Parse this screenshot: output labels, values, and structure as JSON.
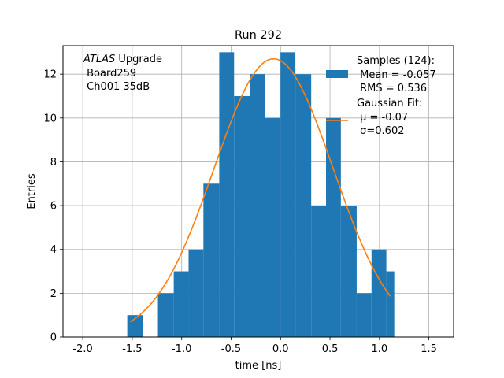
{
  "chart_data": {
    "type": "bar",
    "title": "Run 292",
    "xlabel": "time [ns]",
    "ylabel": "Entries",
    "xlim": [
      -2.2,
      1.75
    ],
    "ylim": [
      0,
      13.3
    ],
    "xticks": [
      -2.0,
      -1.5,
      -1.0,
      -0.5,
      0.0,
      0.5,
      1.0,
      1.5
    ],
    "yticks": [
      0,
      2,
      4,
      6,
      8,
      10,
      12
    ],
    "grid": true,
    "bin_edges": [
      -1.55,
      -1.39,
      -1.24,
      -1.08,
      -0.93,
      -0.78,
      -0.62,
      -0.47,
      -0.31,
      -0.16,
      0.0,
      0.15,
      0.31,
      0.46,
      0.61,
      0.77,
      0.92,
      1.07,
      1.15
    ],
    "series": [
      {
        "name": "Samples (124):",
        "kind": "hist",
        "color": "#1f77b4",
        "values": [
          1,
          0,
          2,
          3,
          4,
          7,
          13,
          11,
          12,
          10,
          13,
          12,
          6,
          10,
          6,
          2,
          4,
          3
        ]
      },
      {
        "name": "Gaussian Fit:",
        "kind": "line",
        "color": "#ff7f0e",
        "mu": -0.07,
        "sigma": 0.602,
        "amplitude": 12.7,
        "x_range": [
          -1.52,
          1.11
        ]
      }
    ],
    "legend_position": "upper right",
    "legend": [
      {
        "label": "Samples (124):",
        "lines": [
          " Mean = -0.057",
          " RMS = 0.536"
        ],
        "color": "#1f77b4",
        "kind": "patch"
      },
      {
        "label": "Gaussian Fit:",
        "lines": [
          " μ = -0.07",
          " σ=0.602"
        ],
        "color": "#ff7f0e",
        "kind": "line"
      }
    ],
    "annotation": {
      "italic": "ATLAS",
      "rest": " Upgrade",
      "lines": [
        " Board259",
        " Ch001 35dB"
      ]
    }
  }
}
